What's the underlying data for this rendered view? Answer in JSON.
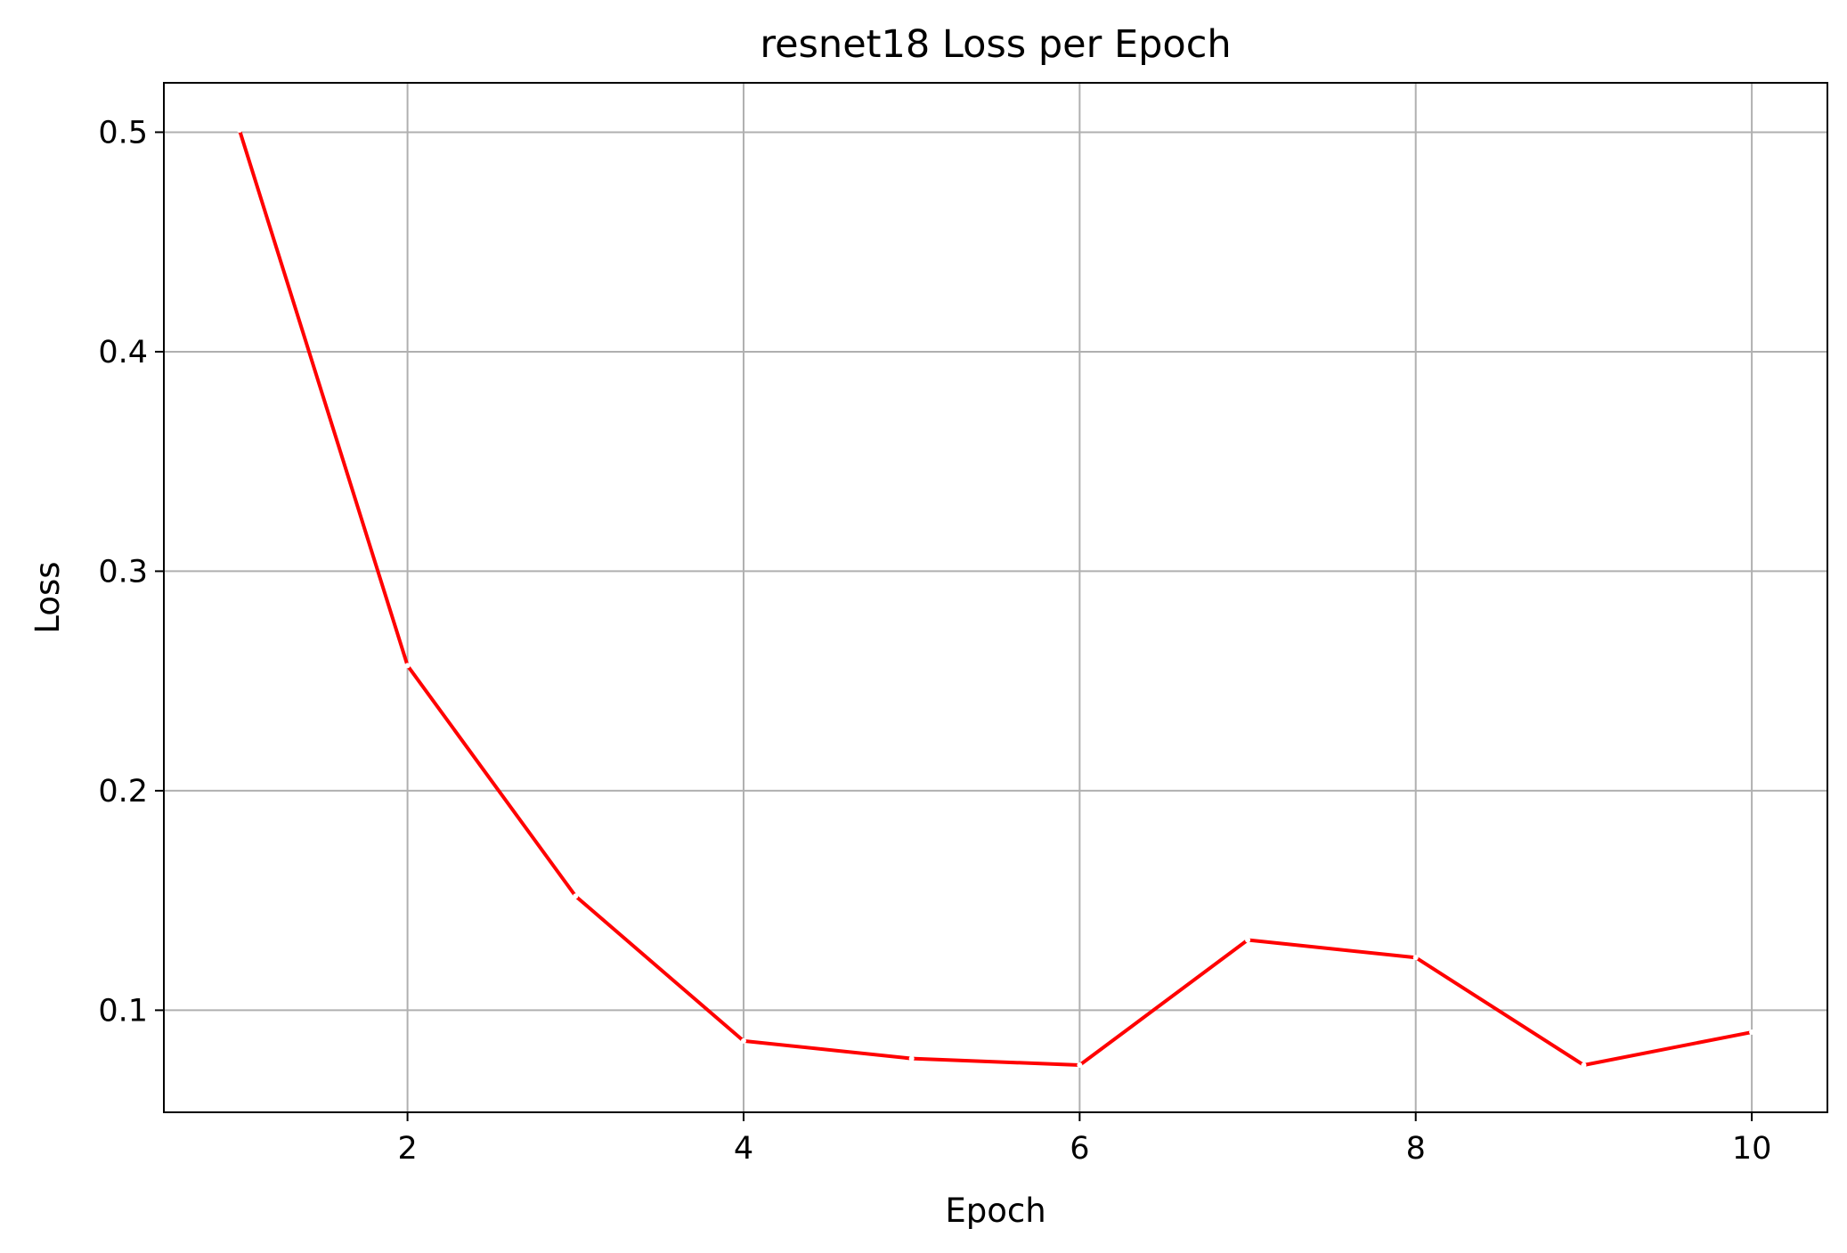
{
  "chart_data": {
    "type": "line",
    "title": "resnet18 Loss per Epoch",
    "xlabel": "Epoch",
    "ylabel": "Loss",
    "x": [
      1,
      2,
      3,
      4,
      5,
      6,
      7,
      8,
      9,
      10
    ],
    "series": [
      {
        "values": [
          0.501,
          0.257,
          0.152,
          0.086,
          0.078,
          0.075,
          0.132,
          0.124,
          0.075,
          0.09
        ]
      }
    ],
    "xlim": [
      0.55,
      10.45
    ],
    "ylim": [
      0.0535,
      0.5225
    ],
    "xticks": [
      "2",
      "4",
      "6",
      "8",
      "10"
    ],
    "yticks": [
      "0.1",
      "0.2",
      "0.3",
      "0.4",
      "0.5"
    ],
    "grid": true,
    "colors": {
      "line": "#ff0000",
      "grid": "#b0b0b0",
      "marker": "#ffffff"
    }
  }
}
